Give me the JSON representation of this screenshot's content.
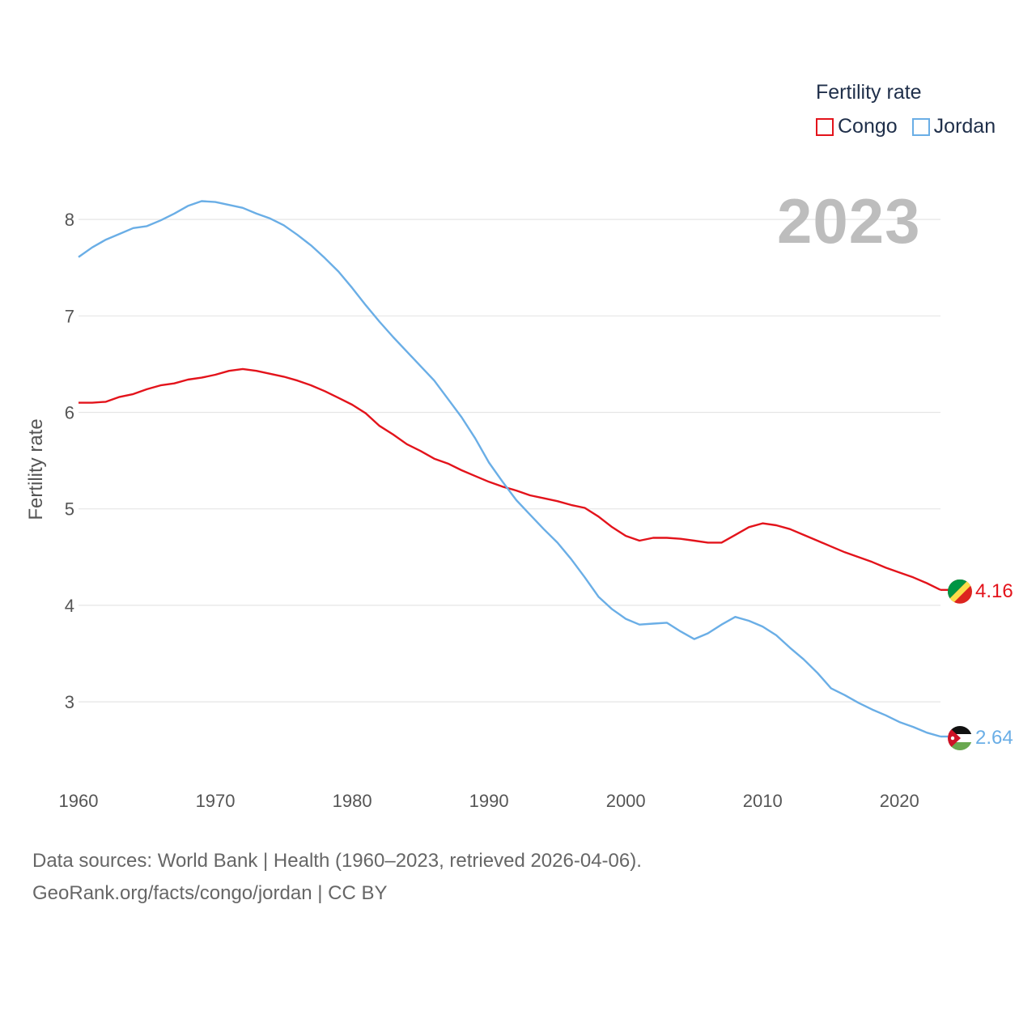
{
  "chart_data": {
    "type": "line",
    "title": "",
    "xlabel": "",
    "ylabel": "Fertility rate",
    "xlim": [
      1960,
      2023
    ],
    "ylim": [
      2.55,
      8.35
    ],
    "grid": true,
    "legend_title": "Fertility rate",
    "legend_position": "top-right",
    "year_label": "2023",
    "x_ticks": [
      1960,
      1970,
      1980,
      1990,
      2000,
      2010,
      2020
    ],
    "y_ticks": [
      3,
      4,
      5,
      6,
      7,
      8
    ],
    "x": [
      1960,
      1961,
      1962,
      1963,
      1964,
      1965,
      1966,
      1967,
      1968,
      1969,
      1970,
      1971,
      1972,
      1973,
      1974,
      1975,
      1976,
      1977,
      1978,
      1979,
      1980,
      1981,
      1982,
      1983,
      1984,
      1985,
      1986,
      1987,
      1988,
      1989,
      1990,
      1991,
      1992,
      1993,
      1994,
      1995,
      1996,
      1997,
      1998,
      1999,
      2000,
      2001,
      2002,
      2003,
      2004,
      2005,
      2006,
      2007,
      2008,
      2009,
      2010,
      2011,
      2012,
      2013,
      2014,
      2015,
      2016,
      2017,
      2018,
      2019,
      2020,
      2021,
      2022,
      2023
    ],
    "series": [
      {
        "name": "Congo",
        "color": "#e3131b",
        "end_label": "4.16",
        "flag": "congo-flag",
        "values": [
          6.1,
          6.1,
          6.11,
          6.16,
          6.19,
          6.24,
          6.28,
          6.3,
          6.34,
          6.36,
          6.39,
          6.43,
          6.45,
          6.43,
          6.4,
          6.37,
          6.33,
          6.28,
          6.22,
          6.15,
          6.08,
          5.99,
          5.86,
          5.77,
          5.67,
          5.6,
          5.52,
          5.47,
          5.4,
          5.34,
          5.28,
          5.23,
          5.19,
          5.14,
          5.11,
          5.08,
          5.04,
          5.01,
          4.92,
          4.81,
          4.72,
          4.67,
          4.7,
          4.7,
          4.69,
          4.67,
          4.65,
          4.65,
          4.73,
          4.81,
          4.85,
          4.83,
          4.79,
          4.73,
          4.67,
          4.61,
          4.55,
          4.5,
          4.45,
          4.39,
          4.34,
          4.29,
          4.23,
          4.16
        ]
      },
      {
        "name": "Jordan",
        "color": "#6aaee6",
        "end_label": "2.64",
        "flag": "jordan-flag",
        "values": [
          7.61,
          7.71,
          7.79,
          7.85,
          7.91,
          7.93,
          7.99,
          8.06,
          8.14,
          8.19,
          8.18,
          8.15,
          8.12,
          8.06,
          8.01,
          7.94,
          7.84,
          7.73,
          7.6,
          7.46,
          7.29,
          7.11,
          6.94,
          6.78,
          6.63,
          6.48,
          6.33,
          6.14,
          5.95,
          5.73,
          5.48,
          5.28,
          5.09,
          4.94,
          4.79,
          4.65,
          4.48,
          4.29,
          4.09,
          3.96,
          3.86,
          3.8,
          3.81,
          3.82,
          3.73,
          3.65,
          3.71,
          3.8,
          3.88,
          3.84,
          3.78,
          3.69,
          3.56,
          3.44,
          3.3,
          3.14,
          3.07,
          2.99,
          2.92,
          2.86,
          2.79,
          2.74,
          2.68,
          2.64
        ]
      }
    ]
  },
  "footer": {
    "line1": "Data sources: World Bank | Health (1960–2023, retrieved 2026-04-06).",
    "line2": "GeoRank.org/facts/congo/jordan | CC BY"
  }
}
